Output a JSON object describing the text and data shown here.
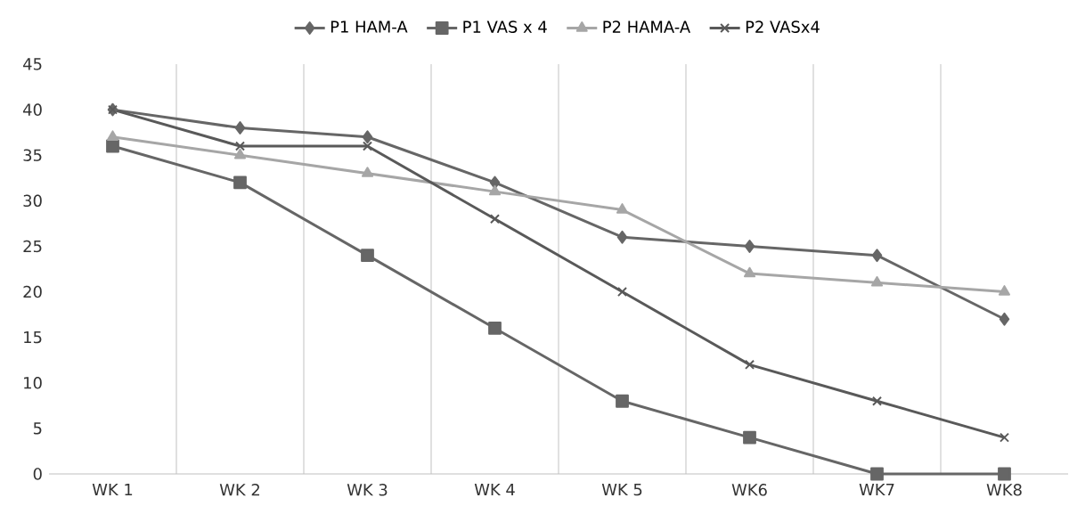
{
  "chart_data": {
    "type": "line",
    "categories": [
      "WK 1",
      "WK 2",
      "WK 3",
      "WK 4",
      "WK 5",
      "WK6",
      "WK7",
      "WK8"
    ],
    "series": [
      {
        "name": "P1 HAM-A",
        "color": "#666666",
        "marker": "diamond",
        "values": [
          40,
          38,
          37,
          32,
          26,
          25,
          24,
          17
        ]
      },
      {
        "name": "P1 VAS x 4",
        "color": "#666666",
        "marker": "square",
        "values": [
          36,
          32,
          24,
          16,
          8,
          4,
          0,
          0
        ]
      },
      {
        "name": "P2 HAMA-A",
        "color": "#a6a6a6",
        "marker": "triangle",
        "values": [
          37,
          35,
          33,
          31,
          29,
          22,
          21,
          20
        ]
      },
      {
        "name": "P2 VASx4",
        "color": "#595959",
        "marker": "cross",
        "values": [
          40,
          36,
          36,
          28,
          20,
          12,
          8,
          4
        ]
      }
    ],
    "ylim": [
      0,
      45
    ],
    "yticks": [
      0,
      5,
      10,
      15,
      20,
      25,
      30,
      35,
      40,
      45
    ],
    "grid": "x",
    "legend": "top",
    "line_style": "solid"
  }
}
